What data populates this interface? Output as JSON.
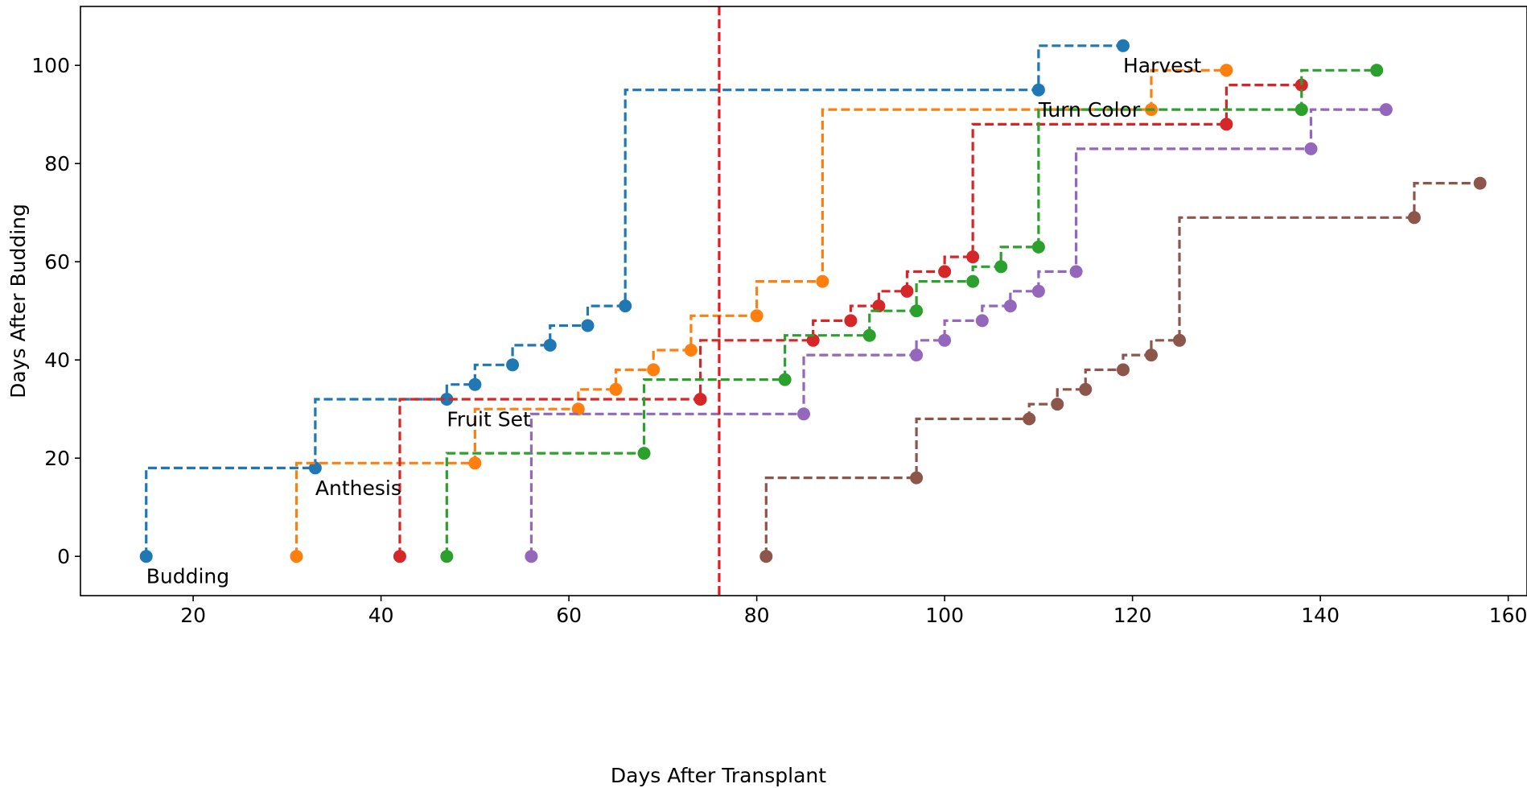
{
  "chart_data": {
    "type": "line",
    "title": "",
    "xlabel": "Days After Transplant",
    "ylabel": "Days After Budding",
    "xlim": [
      8,
      162
    ],
    "ylim": [
      -8,
      112
    ],
    "xticks": [
      20,
      40,
      60,
      80,
      100,
      120,
      140,
      160
    ],
    "yticks": [
      0,
      20,
      40,
      60,
      80,
      100
    ],
    "grid": false,
    "legend": "none",
    "line_style": "dashed step (post) with circle markers",
    "vline": {
      "x": 76,
      "color": "#e8191e",
      "style": "dashed"
    },
    "annotations": [
      {
        "text": "Budding",
        "x": 15,
        "y": -4
      },
      {
        "text": "Anthesis",
        "x": 33,
        "y": 14
      },
      {
        "text": "Fruit Set",
        "x": 47,
        "y": 28
      },
      {
        "text": "Turn Color",
        "x": 110,
        "y": 91
      },
      {
        "text": "Harvest",
        "x": 119,
        "y": 100
      }
    ],
    "series": [
      {
        "color": "#1f77b4",
        "points": [
          [
            15,
            0
          ],
          [
            33,
            18
          ],
          [
            47,
            32
          ],
          [
            50,
            35
          ],
          [
            54,
            39
          ],
          [
            58,
            43
          ],
          [
            62,
            47
          ],
          [
            66,
            51
          ],
          [
            110,
            95
          ],
          [
            119,
            104
          ]
        ]
      },
      {
        "color": "#ff7f0e",
        "points": [
          [
            31,
            0
          ],
          [
            50,
            19
          ],
          [
            61,
            30
          ],
          [
            65,
            34
          ],
          [
            69,
            38
          ],
          [
            73,
            42
          ],
          [
            80,
            49
          ],
          [
            87,
            56
          ],
          [
            122,
            91
          ],
          [
            130,
            99
          ]
        ]
      },
      {
        "color": "#d62728",
        "points": [
          [
            42,
            0
          ],
          [
            74,
            32
          ],
          [
            86,
            44
          ],
          [
            90,
            48
          ],
          [
            93,
            51
          ],
          [
            96,
            54
          ],
          [
            100,
            58
          ],
          [
            103,
            61
          ],
          [
            130,
            88
          ],
          [
            138,
            96
          ]
        ]
      },
      {
        "color": "#2ca02c",
        "points": [
          [
            47,
            0
          ],
          [
            68,
            21
          ],
          [
            83,
            36
          ],
          [
            92,
            45
          ],
          [
            97,
            50
          ],
          [
            103,
            56
          ],
          [
            106,
            59
          ],
          [
            110,
            63
          ],
          [
            138,
            91
          ],
          [
            146,
            99
          ]
        ]
      },
      {
        "color": "#9467bd",
        "points": [
          [
            56,
            0
          ],
          [
            85,
            29
          ],
          [
            97,
            41
          ],
          [
            100,
            44
          ],
          [
            104,
            48
          ],
          [
            107,
            51
          ],
          [
            110,
            54
          ],
          [
            114,
            58
          ],
          [
            139,
            83
          ],
          [
            147,
            91
          ]
        ]
      },
      {
        "color": "#8c564b",
        "points": [
          [
            81,
            0
          ],
          [
            97,
            16
          ],
          [
            109,
            28
          ],
          [
            112,
            31
          ],
          [
            115,
            34
          ],
          [
            119,
            38
          ],
          [
            122,
            41
          ],
          [
            125,
            44
          ],
          [
            150,
            69
          ],
          [
            157,
            76
          ]
        ]
      }
    ]
  }
}
